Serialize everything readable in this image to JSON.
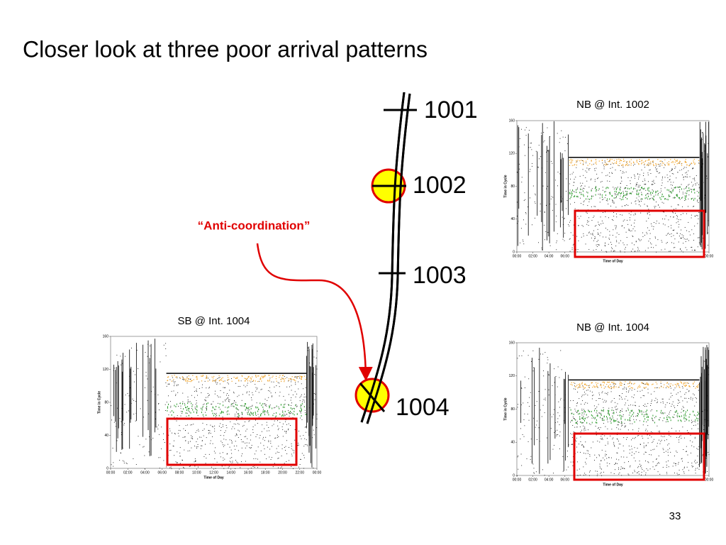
{
  "title": "Closer look at three poor arrival patterns",
  "diagram": {
    "nodes": [
      {
        "label": "1001"
      },
      {
        "label": "1002"
      },
      {
        "label": "1003"
      },
      {
        "label": "1004"
      }
    ],
    "annotation": "“Anti-coordination”"
  },
  "page_number": "33",
  "chart_data": [
    {
      "type": "scatter",
      "title": "NB @ Int. 1002",
      "x_label": "Time of Day",
      "y_label": "Time in Cycle",
      "xlim": [
        0,
        24
      ],
      "ylim": [
        0,
        160
      ],
      "yticks": [
        0,
        40,
        80,
        120,
        160
      ],
      "xticks": [
        {
          "value": 0,
          "label": "00:00"
        },
        {
          "value": 2,
          "label": "02:00"
        },
        {
          "value": 4,
          "label": "04:00"
        },
        {
          "value": 6,
          "label": "06:00"
        },
        {
          "value": 24,
          "label": "00:00"
        }
      ]
    },
    {
      "type": "scatter",
      "title": "SB @ Int. 1004",
      "x_label": "Time of Day",
      "y_label": "Time in Cycle",
      "xlim": [
        0,
        24
      ],
      "ylim": [
        0,
        160
      ],
      "yticks": [
        0,
        40,
        80,
        120,
        160
      ],
      "xticks": [
        {
          "value": 0,
          "label": "00:00"
        },
        {
          "value": 2,
          "label": "02:00"
        },
        {
          "value": 4,
          "label": "04:00"
        },
        {
          "value": 6,
          "label": "06:00"
        },
        {
          "value": 8,
          "label": "08:00"
        },
        {
          "value": 10,
          "label": "10:00"
        },
        {
          "value": 12,
          "label": "12:00"
        },
        {
          "value": 14,
          "label": "14:00"
        },
        {
          "value": 16,
          "label": "16:00"
        },
        {
          "value": 18,
          "label": "18:00"
        },
        {
          "value": 20,
          "label": "20:00"
        },
        {
          "value": 22,
          "label": "22:00"
        },
        {
          "value": 24,
          "label": "00:00"
        }
      ]
    },
    {
      "type": "scatter",
      "title": "NB @ Int. 1004",
      "x_label": "Time of Day",
      "y_label": "Time in Cycle",
      "xlim": [
        0,
        24
      ],
      "ylim": [
        0,
        160
      ],
      "yticks": [
        0,
        40,
        80,
        120,
        160
      ],
      "xticks": [
        {
          "value": 0,
          "label": "00:00"
        },
        {
          "value": 2,
          "label": "02:00"
        },
        {
          "value": 4,
          "label": "04:00"
        },
        {
          "value": 6,
          "label": "06:00"
        },
        {
          "value": 24,
          "label": "00:00"
        }
      ]
    }
  ]
}
